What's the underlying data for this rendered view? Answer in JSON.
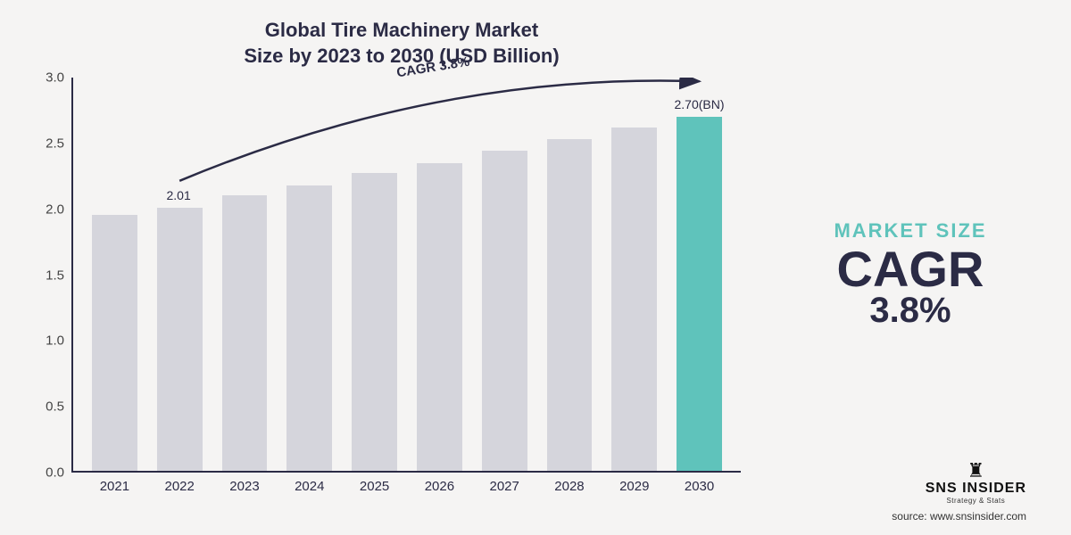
{
  "title": {
    "line1": "Global Tire Machinery Market",
    "line2": "Size by 2023 to 2030 (USD Billion)",
    "color": "#2b2b45",
    "fontsize": 22
  },
  "chart": {
    "type": "bar",
    "categories": [
      "2021",
      "2022",
      "2023",
      "2024",
      "2025",
      "2026",
      "2027",
      "2028",
      "2029",
      "2030"
    ],
    "values": [
      1.95,
      2.01,
      2.1,
      2.18,
      2.27,
      2.35,
      2.44,
      2.53,
      2.62,
      2.7
    ],
    "bar_colors": [
      "#d5d5dc",
      "#d5d5dc",
      "#d5d5dc",
      "#d5d5dc",
      "#d5d5dc",
      "#d5d5dc",
      "#d5d5dc",
      "#d5d5dc",
      "#d5d5dc",
      "#5fc3bb"
    ],
    "highlight_index": 9,
    "ylim": [
      0.0,
      3.0
    ],
    "yticks": [
      0.0,
      0.5,
      1.0,
      1.5,
      2.0,
      2.5,
      3.0
    ],
    "ytick_labels": [
      "0.0",
      "0.5",
      "1.0",
      "1.5",
      "2.0",
      "2.5",
      "3.0"
    ],
    "axis_color": "#2b2b45",
    "label_fontsize": 15,
    "bar_width": 0.7,
    "background_color": "#f5f4f3",
    "value_label_2022": "2.01",
    "value_label_2030": "2.70(BN)",
    "curve_label": "CAGR 3.8%",
    "curve_color": "#2b2b45",
    "curve_width": 2.5
  },
  "side": {
    "label": "MARKET SIZE",
    "cagr_text": "CAGR",
    "pct_text": "3.8%",
    "label_color": "#5fc3bb",
    "text_color": "#2b2b45"
  },
  "logo": {
    "name": "SNS INSIDER",
    "tagline": "Strategy & Stats"
  },
  "source": "source: www.snsinsider.com"
}
